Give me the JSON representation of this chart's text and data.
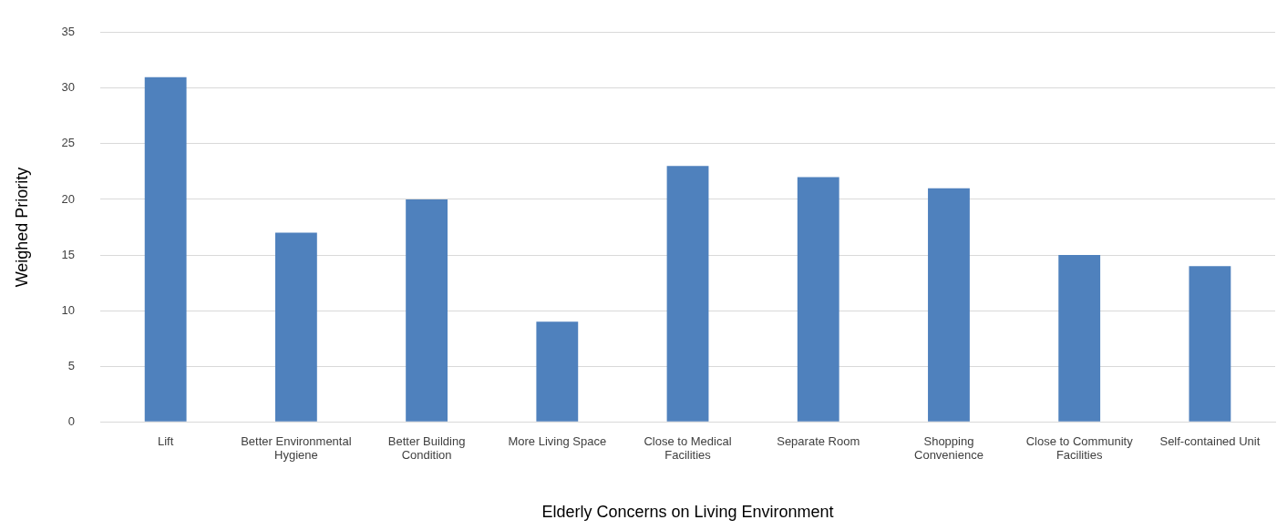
{
  "chart_data": {
    "type": "bar",
    "xlabel": "Elderly Concerns on Living Environment",
    "ylabel": "Weighed Priority",
    "categories": [
      "Lift",
      "Better Environmental Hygiene",
      "Better Building Condition",
      "More Living Space",
      "Close to Medical Facilities",
      "Separate Room",
      "Shopping Convenience",
      "Close to Community Facilities",
      "Self-contained Unit"
    ],
    "values": [
      31,
      17,
      20,
      9,
      23,
      22,
      21,
      15,
      14
    ],
    "color": "#4f81bd",
    "ylim": [
      0,
      35
    ],
    "yticks": [
      0,
      5,
      10,
      15,
      20,
      25,
      30,
      35
    ],
    "grid": "y",
    "legend": false
  }
}
